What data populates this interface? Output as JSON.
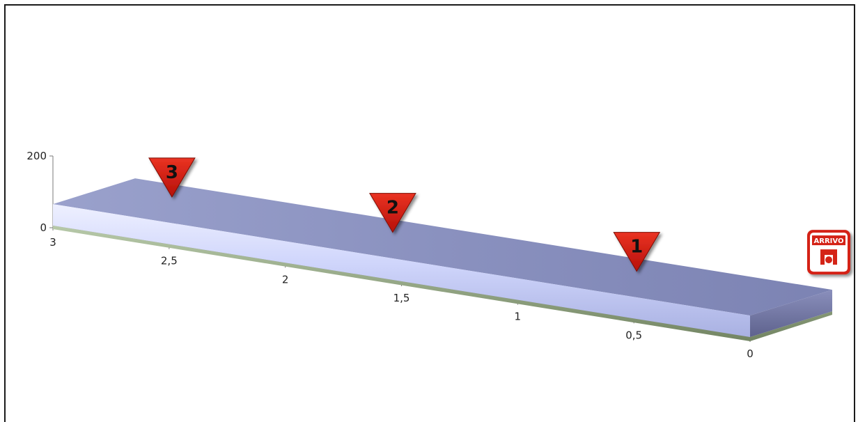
{
  "chart_data": {
    "type": "area",
    "style": "3d",
    "x_ticks": [
      "3",
      "2,5",
      "2",
      "1,5",
      "1",
      "0,5",
      "0"
    ],
    "y_ticks": [
      "200",
      "0"
    ],
    "xlim": [
      3,
      0
    ],
    "ylim": [
      0,
      200
    ],
    "series": [
      {
        "x": [
          3,
          0
        ],
        "values": [
          60,
          60
        ]
      }
    ],
    "markers": [
      {
        "label": "3",
        "x": 2.7
      },
      {
        "label": "2",
        "x": 1.75
      },
      {
        "label": "1",
        "x": 0.7
      }
    ],
    "finish": {
      "label": "ARRIVO",
      "x": 0
    },
    "colors": {
      "top": "#8088b4",
      "front": "#c4ccf6",
      "side": "#7478a6",
      "base": "#97a886",
      "marker": "#d51a12",
      "finish": "#d42417",
      "axis": "#7a7a7a"
    },
    "grid": false,
    "legend": "none"
  }
}
